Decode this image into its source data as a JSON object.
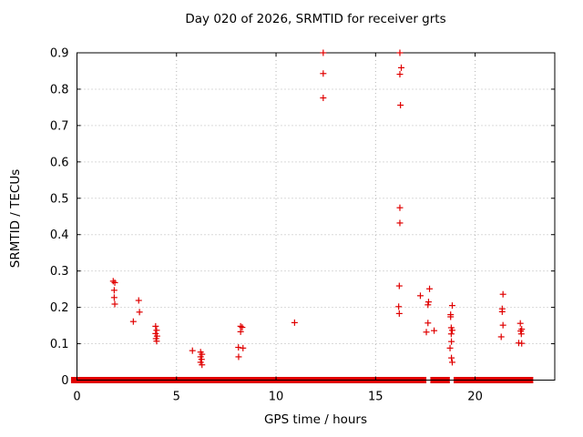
{
  "title": "Day 020 of 2026, SRMTID for receiver grts",
  "chart_data": {
    "type": "scatter",
    "title": "Day 020 of 2026, SRMTID for receiver grts",
    "xlabel": "GPS time / hours",
    "ylabel": "SRMTID / TECUs",
    "xlim": [
      0,
      24
    ],
    "ylim": [
      0,
      0.9
    ],
    "xticks": [
      0,
      5,
      10,
      15,
      20
    ],
    "xtick_labels": [
      "0",
      "5",
      "10",
      "15",
      "20"
    ],
    "yticks": [
      0,
      0.1,
      0.2,
      0.3,
      0.4,
      0.5,
      0.6,
      0.7,
      0.8,
      0.9
    ],
    "ytick_labels": [
      "0",
      "0.1",
      "0.2",
      "0.3",
      "0.4",
      "0.5",
      "0.6",
      "0.7",
      "0.8",
      "0.9"
    ],
    "grid": true,
    "legend": "none",
    "marker": "plus",
    "marker_color": "#e00000",
    "grid_color": "#b5b5b5",
    "series": [
      {
        "name": "SRMTID",
        "points": [
          [
            1.82,
            0.272
          ],
          [
            1.9,
            0.268
          ],
          [
            1.87,
            0.247
          ],
          [
            1.87,
            0.227
          ],
          [
            1.9,
            0.209
          ],
          [
            2.83,
            0.161
          ],
          [
            3.1,
            0.219
          ],
          [
            3.14,
            0.187
          ],
          [
            3.95,
            0.148
          ],
          [
            4.0,
            0.137
          ],
          [
            3.95,
            0.128
          ],
          [
            4.02,
            0.121
          ],
          [
            3.97,
            0.114
          ],
          [
            4.0,
            0.107
          ],
          [
            5.8,
            0.081
          ],
          [
            6.21,
            0.077
          ],
          [
            6.28,
            0.071
          ],
          [
            6.21,
            0.064
          ],
          [
            6.26,
            0.057
          ],
          [
            6.21,
            0.049
          ],
          [
            6.28,
            0.042
          ],
          [
            8.22,
            0.148
          ],
          [
            8.3,
            0.145
          ],
          [
            8.22,
            0.133
          ],
          [
            8.11,
            0.09
          ],
          [
            8.34,
            0.088
          ],
          [
            8.12,
            0.064
          ],
          [
            10.93,
            0.158
          ],
          [
            12.37,
            0.9
          ],
          [
            12.37,
            0.843
          ],
          [
            12.37,
            0.776
          ],
          [
            16.22,
            0.9
          ],
          [
            16.29,
            0.859
          ],
          [
            16.22,
            0.841
          ],
          [
            16.25,
            0.756
          ],
          [
            16.22,
            0.474
          ],
          [
            16.22,
            0.432
          ],
          [
            16.19,
            0.259
          ],
          [
            16.16,
            0.202
          ],
          [
            16.19,
            0.183
          ],
          [
            17.25,
            0.232
          ],
          [
            17.71,
            0.251
          ],
          [
            17.66,
            0.215
          ],
          [
            17.63,
            0.207
          ],
          [
            17.63,
            0.157
          ],
          [
            17.55,
            0.132
          ],
          [
            17.94,
            0.136
          ],
          [
            18.85,
            0.205
          ],
          [
            18.77,
            0.18
          ],
          [
            18.77,
            0.174
          ],
          [
            18.8,
            0.144
          ],
          [
            18.85,
            0.137
          ],
          [
            18.8,
            0.127
          ],
          [
            18.81,
            0.106
          ],
          [
            18.74,
            0.088
          ],
          [
            18.81,
            0.061
          ],
          [
            18.85,
            0.049
          ],
          [
            21.4,
            0.236
          ],
          [
            21.36,
            0.196
          ],
          [
            21.36,
            0.188
          ],
          [
            21.4,
            0.151
          ],
          [
            21.31,
            0.119
          ],
          [
            22.27,
            0.156
          ],
          [
            22.34,
            0.14
          ],
          [
            22.29,
            0.135
          ],
          [
            22.32,
            0.127
          ],
          [
            22.19,
            0.102
          ],
          [
            22.34,
            0.101
          ]
        ]
      }
    ],
    "baseline_band": {
      "value": 0,
      "comment": "dense run of points at y=0 forming a thick red band along the x-axis",
      "segments_hours": [
        [
          -0.3,
          17.55
        ],
        [
          17.75,
          18.73
        ],
        [
          18.92,
          22.92
        ]
      ]
    }
  }
}
